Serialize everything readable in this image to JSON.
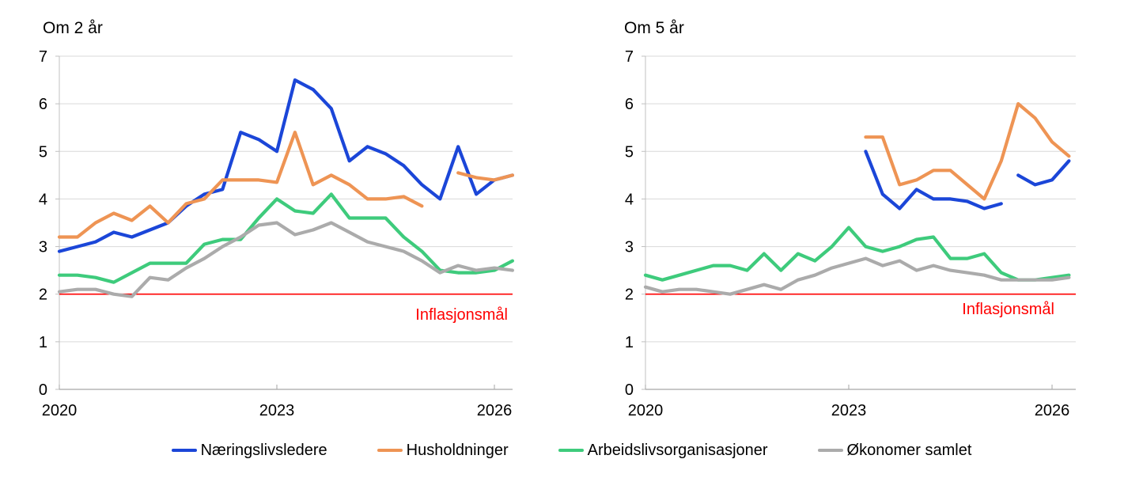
{
  "page": {
    "background": "#ffffff"
  },
  "colors": {
    "business_leaders": "#1b46d8",
    "households": "#ee9454",
    "labour_organisations": "#3ecb7c",
    "economists": "#ababab",
    "inflation_target": "#ff0000",
    "gridline": "#d9d9d9",
    "axis": "#a6a6a6",
    "y_axis": "#c0c0c0",
    "text": "#000000"
  },
  "legend": {
    "items": [
      {
        "label": "Næringslivsledere",
        "color": "#1b46d8"
      },
      {
        "label": "Husholdninger",
        "color": "#ee9454"
      },
      {
        "label": "Arbeidslivsorganisasjoner",
        "color": "#3ecb7c"
      },
      {
        "label": "Økonomer samlet",
        "color": "#ababab"
      }
    ]
  },
  "chart_data": [
    {
      "type": "line",
      "title": "Om 2 år",
      "xlabel": "",
      "ylabel": "",
      "ylim": [
        0,
        7
      ],
      "xlim": [
        2020,
        2026.3
      ],
      "y_ticks": [
        0,
        1,
        2,
        3,
        4,
        5,
        6,
        7
      ],
      "x_ticks": [
        2020,
        2023,
        2026
      ],
      "grid": "horizontal",
      "x_unit": "quarterly",
      "annotation": {
        "label": "Inflasjonsmål",
        "y": 2,
        "color": "#ff0000"
      },
      "series": [
        {
          "name": "Næringslivsledere",
          "color": "#1b46d8",
          "segments": [
            {
              "x_start": 2020.0,
              "x_step": 0.25,
              "values": [
                2.9,
                3.0,
                3.1,
                3.3,
                3.2,
                3.35,
                3.5,
                3.85,
                4.1,
                4.2,
                5.4,
                5.25,
                5.0,
                6.5,
                6.3,
                5.9,
                4.8,
                5.1,
                4.95,
                4.7,
                4.3,
                4.0,
                5.1,
                4.1,
                4.4,
                4.5
              ]
            }
          ]
        },
        {
          "name": "Husholdninger",
          "color": "#ee9454",
          "segments": [
            {
              "x_start": 2020.0,
              "x_step": 0.25,
              "values": [
                3.2,
                3.2,
                3.5,
                3.7,
                3.55,
                3.85,
                3.5,
                3.9,
                4.0,
                4.4,
                4.4,
                4.4,
                4.35,
                5.4,
                4.3,
                4.5,
                4.3,
                4.0,
                4.0,
                4.05,
                3.85
              ]
            },
            {
              "x_start": 2025.5,
              "x_step": 0.25,
              "values": [
                4.55,
                4.45,
                4.4,
                4.5
              ]
            }
          ]
        },
        {
          "name": "Arbeidslivsorganisasjoner",
          "color": "#3ecb7c",
          "segments": [
            {
              "x_start": 2020.0,
              "x_step": 0.25,
              "values": [
                2.4,
                2.4,
                2.35,
                2.25,
                2.45,
                2.65,
                2.65,
                2.65,
                3.05,
                3.15,
                3.15,
                3.6,
                4.0,
                3.75,
                3.7,
                4.1,
                3.6,
                3.6,
                3.6,
                3.2,
                2.9,
                2.5,
                2.45,
                2.45,
                2.5,
                2.7
              ]
            }
          ]
        },
        {
          "name": "Økonomer samlet",
          "color": "#ababab",
          "segments": [
            {
              "x_start": 2020.0,
              "x_step": 0.25,
              "values": [
                2.05,
                2.1,
                2.1,
                2.0,
                1.95,
                2.35,
                2.3,
                2.55,
                2.75,
                3.0,
                3.2,
                3.45,
                3.5,
                3.25,
                3.35,
                3.5,
                3.3,
                3.1,
                3.0,
                2.9,
                2.7,
                2.45,
                2.6,
                2.5,
                2.55,
                2.5
              ]
            }
          ]
        }
      ]
    },
    {
      "type": "line",
      "title": "Om 5 år",
      "xlabel": "",
      "ylabel": "",
      "ylim": [
        0,
        7
      ],
      "xlim": [
        2020,
        2026.3
      ],
      "y_ticks": [
        0,
        1,
        2,
        3,
        4,
        5,
        6,
        7
      ],
      "x_ticks": [
        2020,
        2023,
        2026
      ],
      "grid": "horizontal",
      "x_unit": "quarterly",
      "annotation": {
        "label": "Inflasjonsmål",
        "y": 2,
        "color": "#ff0000"
      },
      "series": [
        {
          "name": "Næringslivsledere",
          "color": "#1b46d8",
          "segments": [
            {
              "x_start": 2023.25,
              "x_step": 0.25,
              "values": [
                5.0,
                4.1,
                3.8,
                4.2,
                4.0,
                4.0,
                3.95,
                3.8,
                3.9
              ]
            },
            {
              "x_start": 2025.5,
              "x_step": 0.25,
              "values": [
                4.5,
                4.3,
                4.4,
                4.8
              ]
            }
          ]
        },
        {
          "name": "Husholdninger",
          "color": "#ee9454",
          "segments": [
            {
              "x_start": 2023.25,
              "x_step": 0.25,
              "values": [
                5.3,
                5.3,
                4.3,
                4.4,
                4.6,
                4.6,
                4.3,
                4.0,
                4.8,
                6.0,
                5.7,
                5.2,
                4.9
              ]
            }
          ]
        },
        {
          "name": "Arbeidslivsorganisasjoner",
          "color": "#3ecb7c",
          "segments": [
            {
              "x_start": 2020.0,
              "x_step": 0.25,
              "values": [
                2.4,
                2.3,
                2.4,
                2.5,
                2.6,
                2.6,
                2.5,
                2.85,
                2.5,
                2.85,
                2.7,
                3.0,
                3.4,
                3.0,
                2.9,
                3.0,
                3.15,
                3.2,
                2.75,
                2.75,
                2.85,
                2.45,
                2.3,
                2.3,
                2.35,
                2.4
              ]
            }
          ]
        },
        {
          "name": "Økonomer samlet",
          "color": "#ababab",
          "segments": [
            {
              "x_start": 2020.0,
              "x_step": 0.25,
              "values": [
                2.15,
                2.05,
                2.1,
                2.1,
                2.05,
                2.0,
                2.1,
                2.2,
                2.1,
                2.3,
                2.4,
                2.55,
                2.65,
                2.75,
                2.6,
                2.7,
                2.5,
                2.6,
                2.5,
                2.45,
                2.4,
                2.3,
                2.3,
                2.3,
                2.3,
                2.35
              ]
            }
          ]
        }
      ]
    }
  ]
}
